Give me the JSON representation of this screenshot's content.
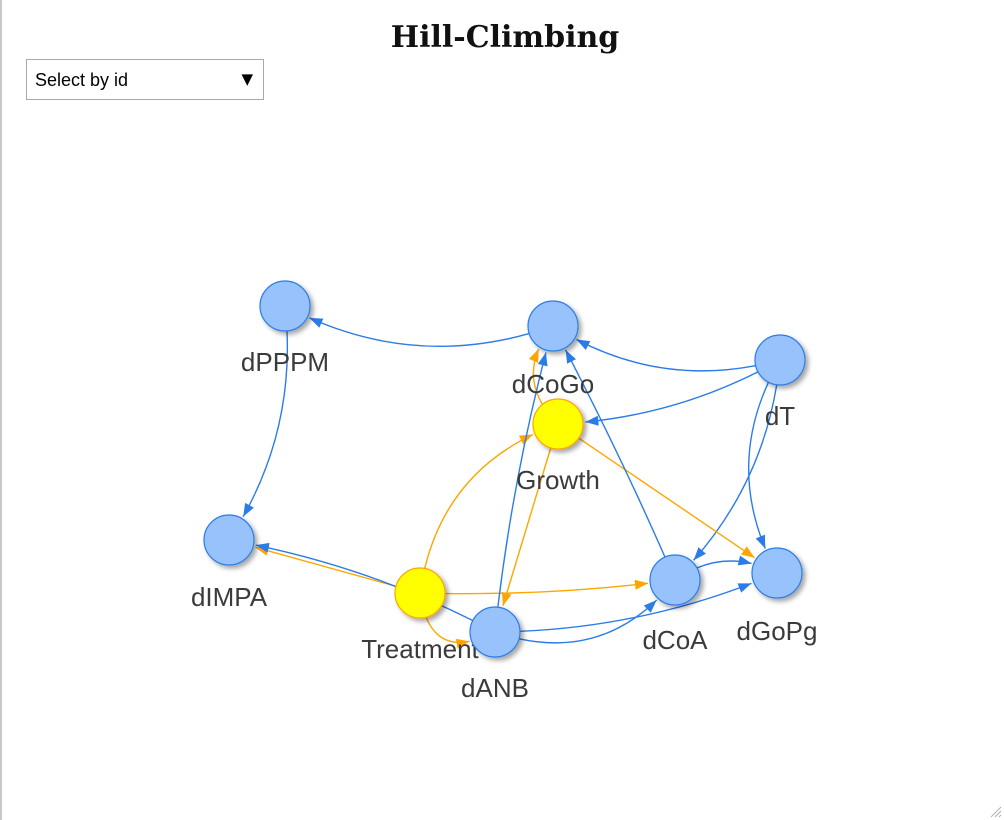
{
  "title": "Hill-Climbing",
  "select": {
    "label": "Select by id",
    "arrow": "▼"
  },
  "colors": {
    "node_blue": "#97c2fc",
    "node_blue_border": "#2b7ce9",
    "node_yellow": "#ffff00",
    "node_yellow_border": "#ffa500",
    "edge_blue": "#2b7ce9",
    "edge_orange": "#ffa500"
  },
  "graph": {
    "nodes": [
      {
        "id": "dPPPM",
        "label": "dPPPM",
        "color": "blue"
      },
      {
        "id": "dCoGo",
        "label": "dCoGo",
        "color": "blue"
      },
      {
        "id": "dT",
        "label": "dT",
        "color": "blue"
      },
      {
        "id": "Growth",
        "label": "Growth",
        "color": "yellow"
      },
      {
        "id": "dIMPA",
        "label": "dIMPA",
        "color": "blue"
      },
      {
        "id": "Treatment",
        "label": "Treatment",
        "color": "yellow"
      },
      {
        "id": "dANB",
        "label": "dANB",
        "color": "blue"
      },
      {
        "id": "dCoA",
        "label": "dCoA",
        "color": "blue"
      },
      {
        "id": "dGoPg",
        "label": "dGoPg",
        "color": "blue"
      }
    ],
    "edges": [
      {
        "from": "dCoGo",
        "to": "dPPPM",
        "color": "blue"
      },
      {
        "from": "dPPPM",
        "to": "dIMPA",
        "color": "blue"
      },
      {
        "from": "dT",
        "to": "dCoGo",
        "color": "blue"
      },
      {
        "from": "dT",
        "to": "dCoA",
        "color": "blue"
      },
      {
        "from": "dT",
        "to": "dGoPg",
        "color": "blue"
      },
      {
        "from": "dT",
        "to": "Growth",
        "color": "blue"
      },
      {
        "from": "Growth",
        "to": "dCoGo",
        "color": "orange"
      },
      {
        "from": "Growth",
        "to": "dGoPg",
        "color": "orange"
      },
      {
        "from": "Growth",
        "to": "dANB",
        "color": "orange"
      },
      {
        "from": "Treatment",
        "to": "Growth",
        "color": "orange"
      },
      {
        "from": "Treatment",
        "to": "dIMPA",
        "color": "orange"
      },
      {
        "from": "Treatment",
        "to": "dCoA",
        "color": "orange"
      },
      {
        "from": "Treatment",
        "to": "dANB",
        "color": "orange"
      },
      {
        "from": "dANB",
        "to": "dIMPA",
        "color": "blue"
      },
      {
        "from": "dANB",
        "to": "dCoGo",
        "color": "blue"
      },
      {
        "from": "dANB",
        "to": "dCoA",
        "color": "blue"
      },
      {
        "from": "dANB",
        "to": "dGoPg",
        "color": "blue"
      },
      {
        "from": "dCoA",
        "to": "dCoGo",
        "color": "blue"
      },
      {
        "from": "dCoA",
        "to": "dGoPg",
        "color": "blue"
      }
    ]
  }
}
